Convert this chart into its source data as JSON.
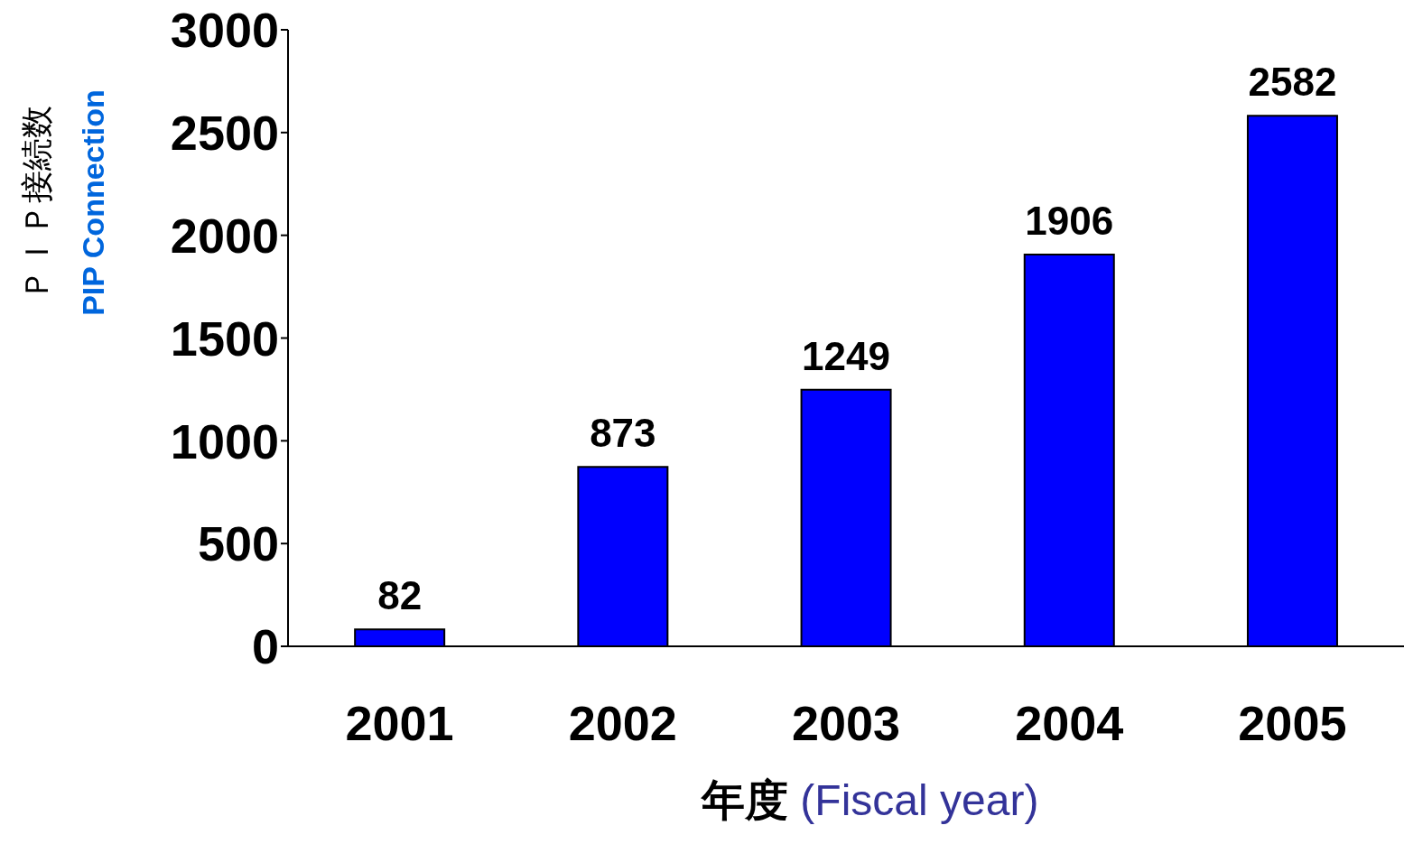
{
  "chart_data": {
    "type": "bar",
    "ylabel": "ＰＩＰ接続数\nPIP Connection",
    "xlabel": "年度 (Fiscal year)",
    "categories": [
      "2001",
      "2002",
      "2003",
      "2004",
      "2005"
    ],
    "values": [
      82,
      873,
      1249,
      1906,
      2582
    ],
    "color": "#0000ff",
    "ylim": [
      0,
      3000
    ],
    "yticks": [
      0,
      500,
      1000,
      1500,
      2000,
      2500,
      3000
    ],
    "data_labels": true,
    "grid": false
  }
}
